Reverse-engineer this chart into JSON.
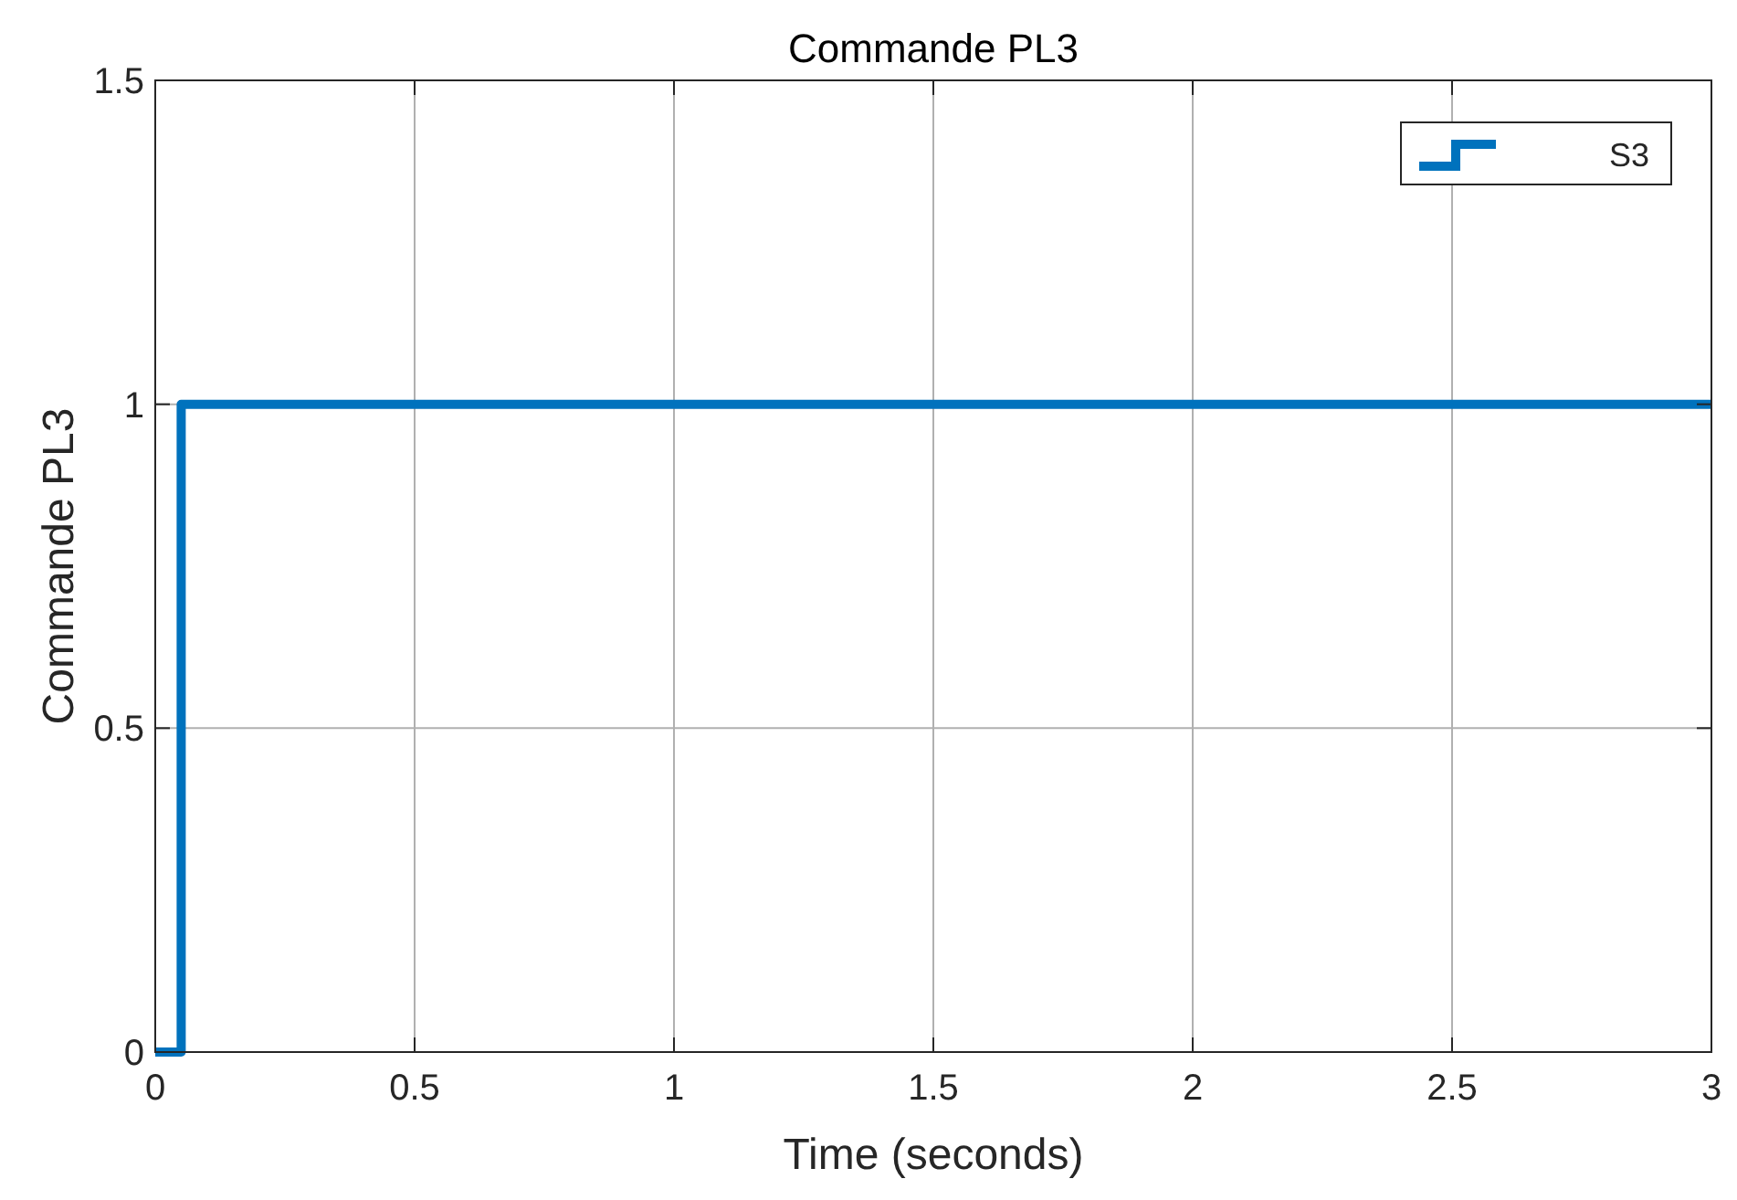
{
  "chart_data": {
    "type": "step",
    "title": "Commande PL3",
    "xlabel": "Time (seconds)",
    "ylabel": "Commande PL3",
    "series": [
      {
        "name": "S3",
        "color": "#0072bd",
        "x": [
          0,
          0.05,
          3
        ],
        "values": [
          0,
          1,
          1
        ]
      }
    ],
    "xlim": [
      0,
      3
    ],
    "xticks": [
      0,
      0.5,
      1,
      1.5,
      2,
      2.5,
      3
    ],
    "ylim": [
      0,
      1.5
    ],
    "yticks": [
      0,
      0.5,
      1,
      1.5
    ],
    "grid": true,
    "legend": "top right",
    "line_style": "solid"
  }
}
